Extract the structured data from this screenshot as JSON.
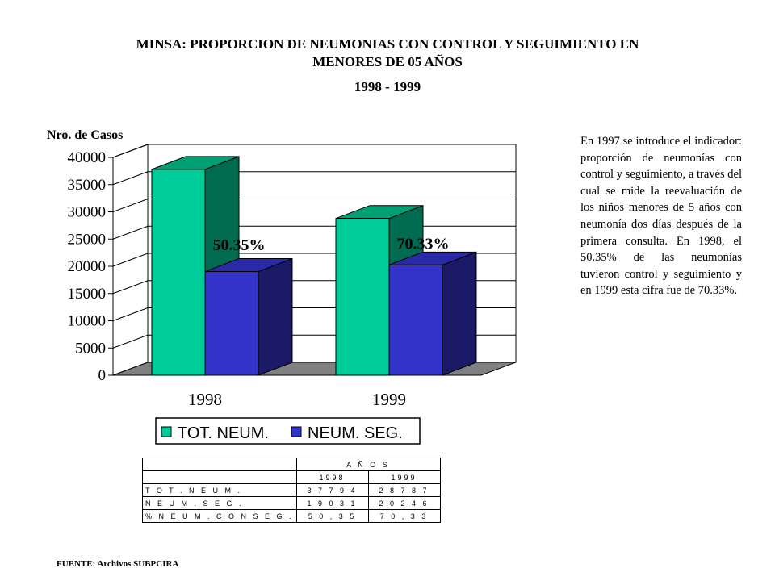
{
  "title": {
    "line1": "MINSA: PROPORCION DE NEUMONIAS CON CONTROL Y SEGUIMIENTO EN",
    "line2": "MENORES DE 05 AÑOS",
    "line3": "1998 - 1999"
  },
  "chart_data": {
    "type": "bar",
    "ylabel": "Nro. de Casos",
    "categories": [
      "1998",
      "1999"
    ],
    "ylim": [
      0,
      40000
    ],
    "yticks": [
      "0",
      "5000",
      "10000",
      "15000",
      "20000",
      "25000",
      "30000",
      "35000",
      "40000"
    ],
    "series": [
      {
        "name": "TOT. NEUM.",
        "values": [
          37794,
          28787
        ]
      },
      {
        "name": "NEUM. SEG.",
        "values": [
          19031,
          20246
        ]
      }
    ],
    "annotations": [
      "50.35%",
      "70.33%"
    ],
    "grid": true,
    "legend_position": "bottom",
    "colors": {
      "tot_front": "#00cc99",
      "tot_side": "#006b4f",
      "tot_top": "#00a075",
      "seg_front": "#3333cc",
      "seg_side": "#1a1a66",
      "seg_top": "#2a2aa8",
      "floor": "#808080"
    }
  },
  "note": "En 1997 se introduce el indicador: proporción de neumonías con control y seguimiento, a través del cual se mide la reevaluación de los niños menores de 5 años con neumonía dos días después de la primera consulta. En 1998, el 50.35% de las neumonías tuvieron control y seguimiento y en 1999 esta cifra fue de 70.33%.",
  "table": {
    "header": "A Ñ O S",
    "years": [
      "1998",
      "1999"
    ],
    "rows": [
      {
        "label": "T O T . N E U M .",
        "values": [
          "3 7 7 9 4",
          "2 8 7 8 7"
        ]
      },
      {
        "label": "N E U M . S E G .",
        "values": [
          "1 9 0 3 1",
          "2 0 2 4 6"
        ]
      },
      {
        "label": "% N E U M . C O N S E G .",
        "values": [
          "5 0 , 3 5",
          "7 0 , 3 3"
        ]
      }
    ]
  },
  "source": "FUENTE: Archivos SUBPCIRA"
}
